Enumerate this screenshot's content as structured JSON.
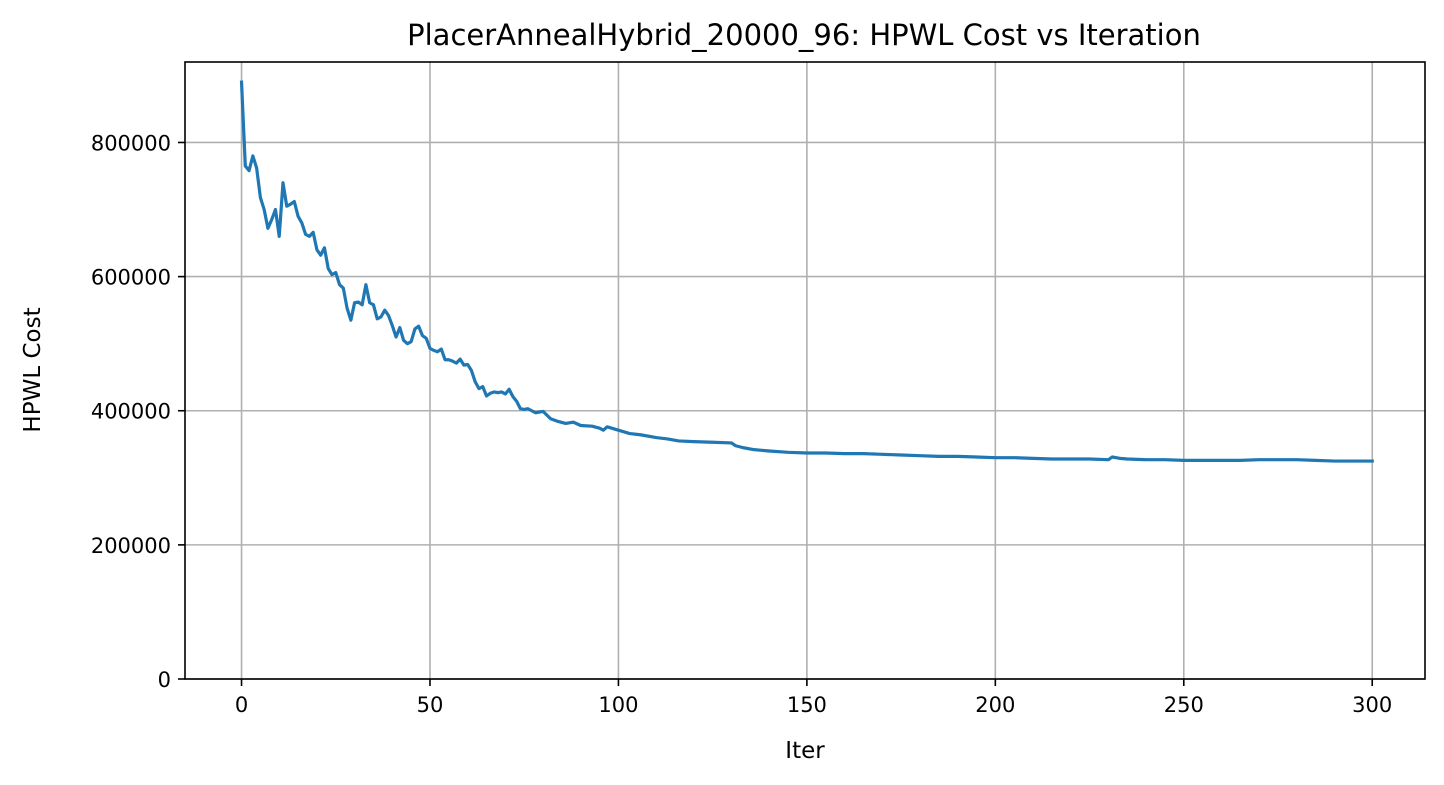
{
  "chart_data": {
    "type": "line",
    "title": "PlacerAnnealHybrid_20000_96: HPWL Cost vs Iteration",
    "xlabel": "Iter",
    "ylabel": "HPWL Cost",
    "xlim": [
      -15,
      314
    ],
    "ylim": [
      0,
      920000
    ],
    "xticks": [
      0,
      50,
      100,
      150,
      200,
      250,
      300
    ],
    "yticks": [
      0,
      200000,
      400000,
      600000,
      800000
    ],
    "grid": true,
    "series": [
      {
        "color": "#1f77b4",
        "x": [
          0,
          1,
          2,
          3,
          4,
          5,
          6,
          7,
          8,
          9,
          10,
          11,
          12,
          13,
          14,
          15,
          16,
          17,
          18,
          19,
          20,
          21,
          22,
          23,
          24,
          25,
          26,
          27,
          28,
          29,
          30,
          31,
          32,
          33,
          34,
          35,
          36,
          37,
          38,
          39,
          40,
          41,
          42,
          43,
          44,
          45,
          46,
          47,
          48,
          49,
          50,
          51,
          52,
          53,
          54,
          55,
          56,
          57,
          58,
          59,
          60,
          61,
          62,
          63,
          64,
          65,
          66,
          67,
          68,
          69,
          70,
          71,
          72,
          73,
          74,
          75,
          76,
          78,
          80,
          82,
          84,
          86,
          88,
          90,
          93,
          95,
          96,
          97,
          100,
          103,
          106,
          110,
          113,
          116,
          120,
          125,
          130,
          131,
          133,
          136,
          140,
          145,
          150,
          155,
          160,
          165,
          170,
          175,
          180,
          185,
          190,
          195,
          200,
          205,
          210,
          215,
          220,
          225,
          230,
          231,
          233,
          235,
          240,
          245,
          250,
          255,
          260,
          265,
          270,
          275,
          280,
          285,
          290,
          295,
          300
        ],
        "values": [
          890000,
          765000,
          758000,
          780000,
          762000,
          718000,
          700000,
          672000,
          685000,
          700000,
          660000,
          740000,
          705000,
          708000,
          712000,
          690000,
          680000,
          663000,
          660000,
          666000,
          640000,
          632000,
          643000,
          612000,
          603000,
          606000,
          588000,
          583000,
          553000,
          535000,
          561000,
          562000,
          558000,
          588000,
          561000,
          558000,
          537000,
          540000,
          550000,
          542000,
          527000,
          510000,
          524000,
          505000,
          500000,
          503000,
          522000,
          526000,
          512000,
          508000,
          493000,
          490000,
          488000,
          492000,
          476000,
          476000,
          474000,
          471000,
          477000,
          468000,
          469000,
          460000,
          443000,
          433000,
          436000,
          422000,
          426000,
          428000,
          427000,
          428000,
          425000,
          432000,
          421000,
          414000,
          403000,
          402000,
          403000,
          397000,
          399000,
          388000,
          384000,
          381000,
          383000,
          378000,
          377000,
          374000,
          371000,
          376000,
          371000,
          366000,
          364000,
          360000,
          358000,
          355000,
          354000,
          353000,
          352000,
          348000,
          345000,
          342000,
          340000,
          338000,
          337000,
          337000,
          336000,
          336000,
          335000,
          334000,
          333000,
          332000,
          332000,
          331000,
          330000,
          330000,
          329000,
          328000,
          328000,
          328000,
          327000,
          331000,
          329000,
          328000,
          327000,
          327000,
          326000,
          326000,
          326000,
          326000,
          327000,
          327000,
          327000,
          326000,
          325000,
          325000,
          325000
        ]
      }
    ]
  }
}
